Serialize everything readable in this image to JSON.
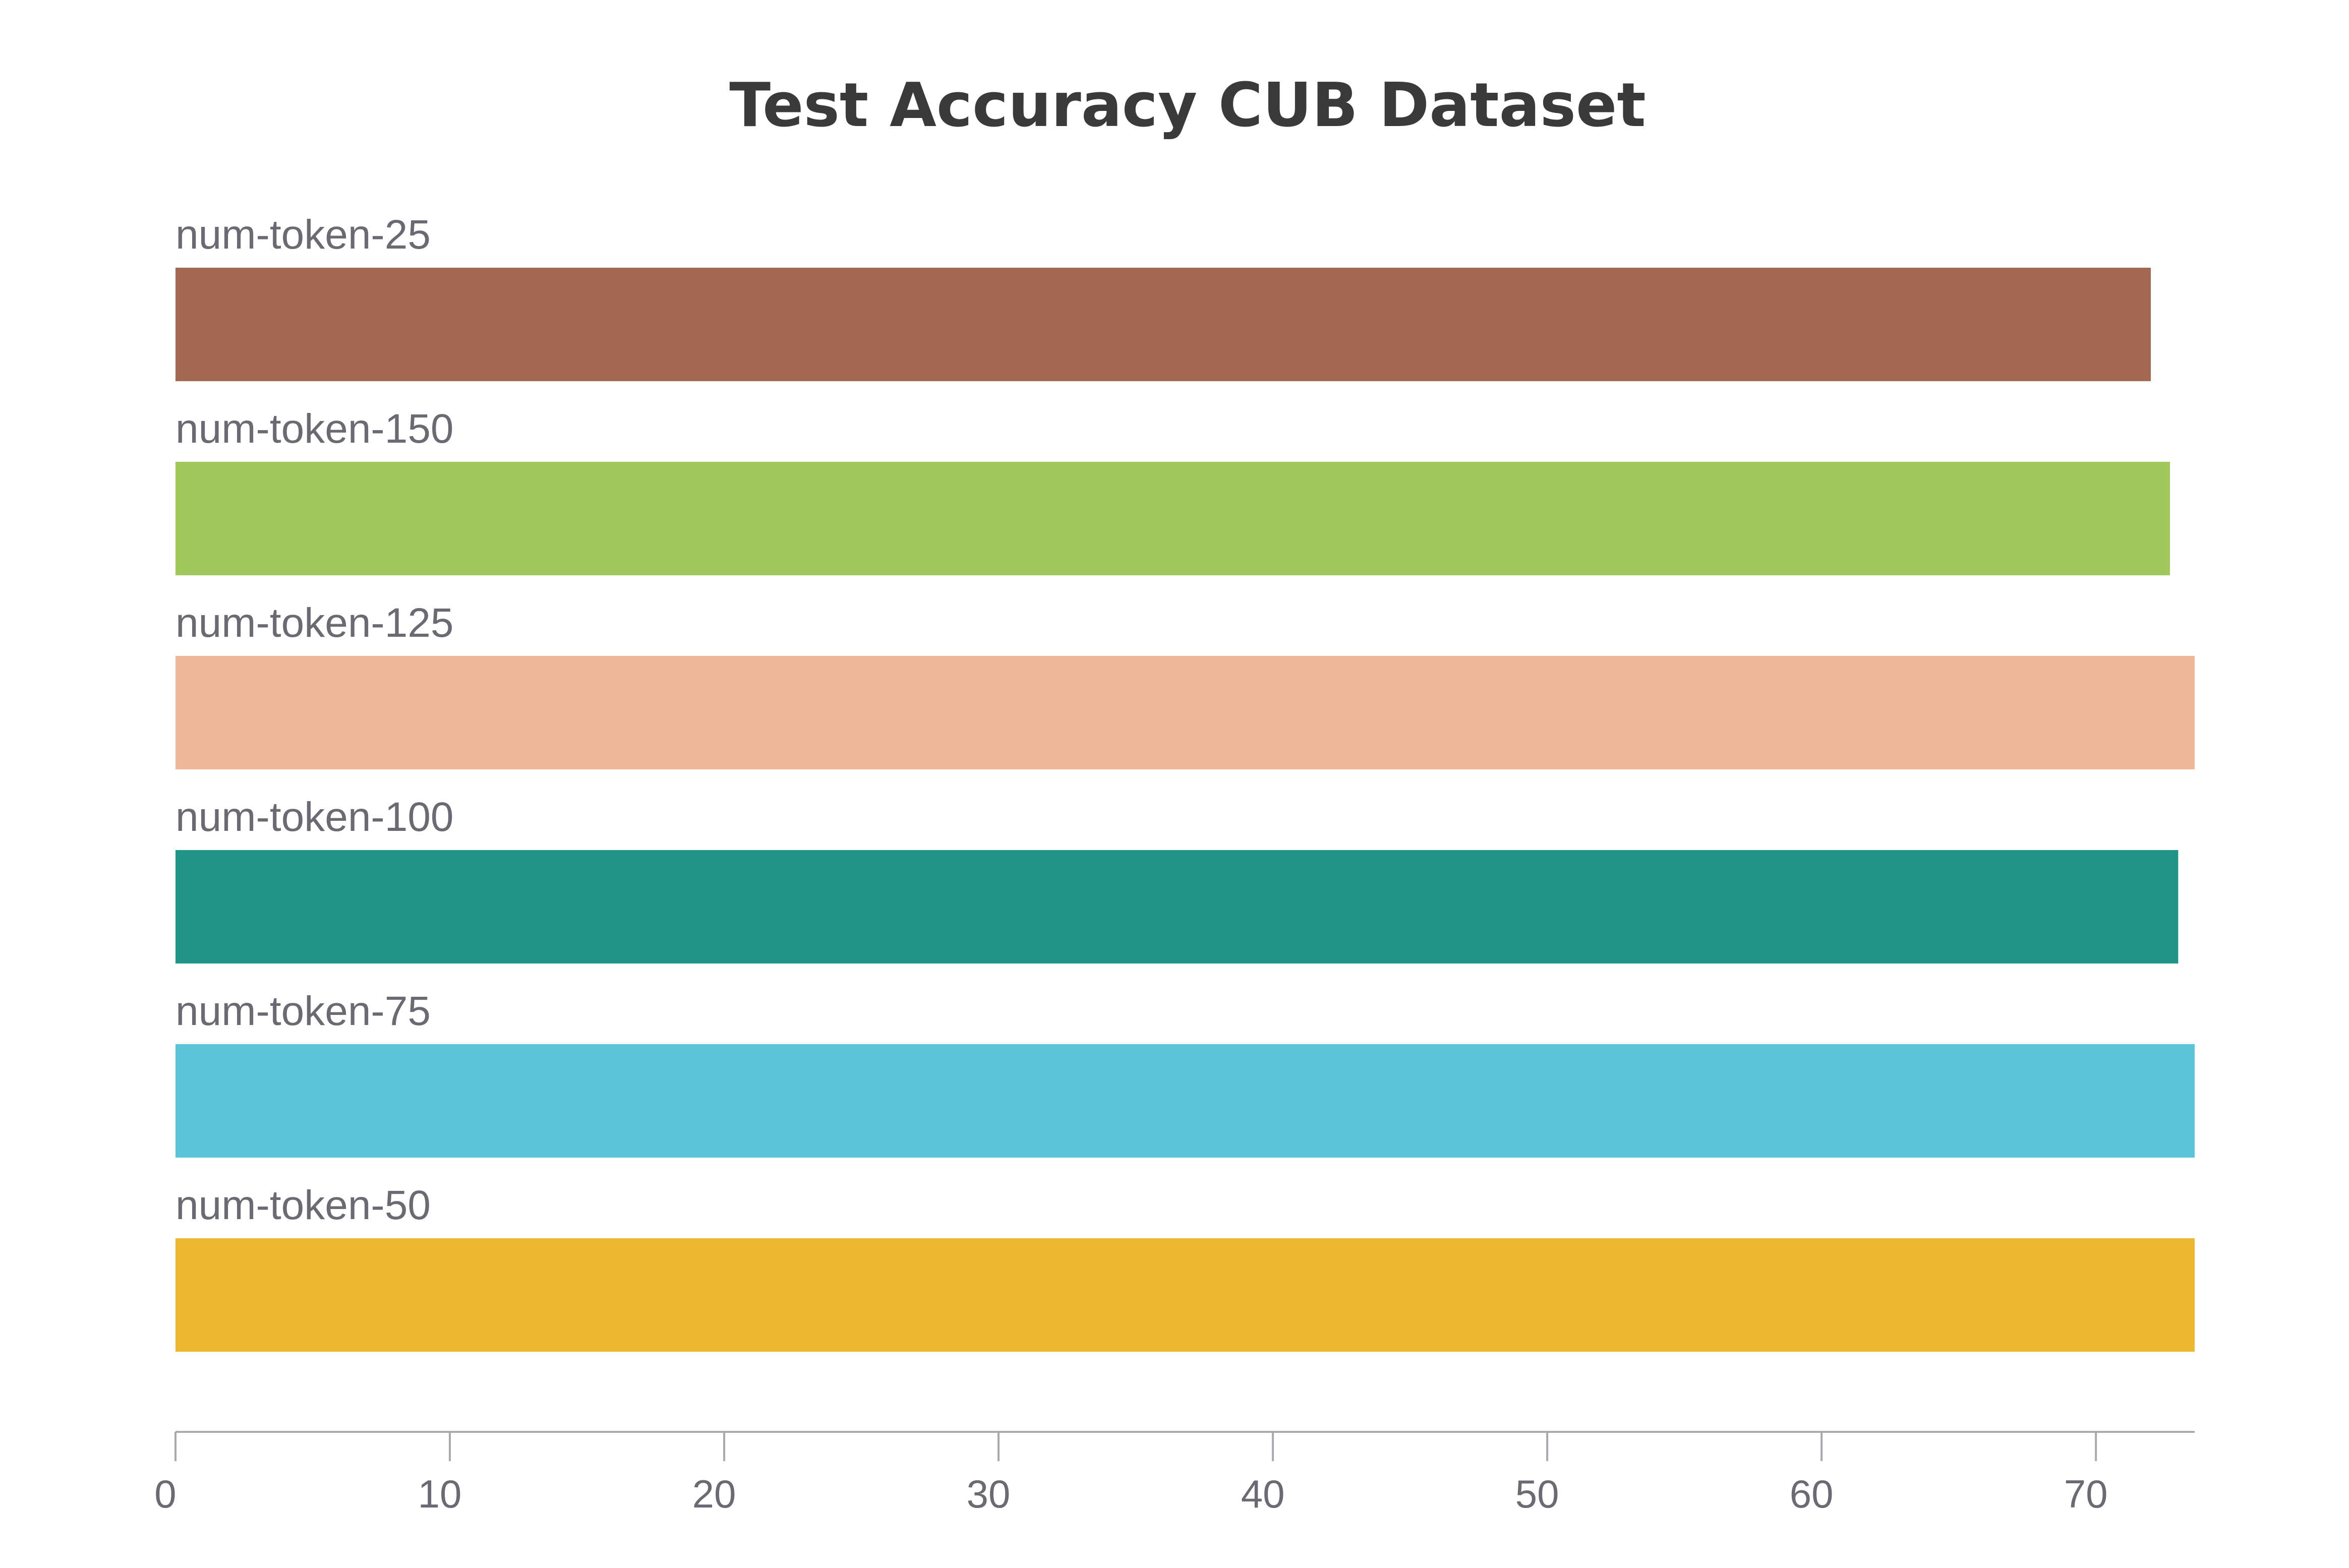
{
  "chart_data": {
    "type": "bar",
    "orientation": "horizontal",
    "title": "Test Accuracy CUB Dataset",
    "xlabel": "",
    "ylabel": "",
    "xlim": [
      0,
      73.6
    ],
    "x_ticks": [
      0,
      10,
      20,
      30,
      40,
      50,
      60,
      70
    ],
    "grid": false,
    "categories": [
      "num-token-25",
      "num-token-150",
      "num-token-125",
      "num-token-100",
      "num-token-75",
      "num-token-50"
    ],
    "values": [
      72.0,
      72.7,
      73.6,
      73.0,
      73.6,
      73.6
    ],
    "colors": [
      "#a36851",
      "#a1c85c",
      "#f0b89a",
      "#229487",
      "#5bc4da",
      "#ecb731"
    ]
  }
}
